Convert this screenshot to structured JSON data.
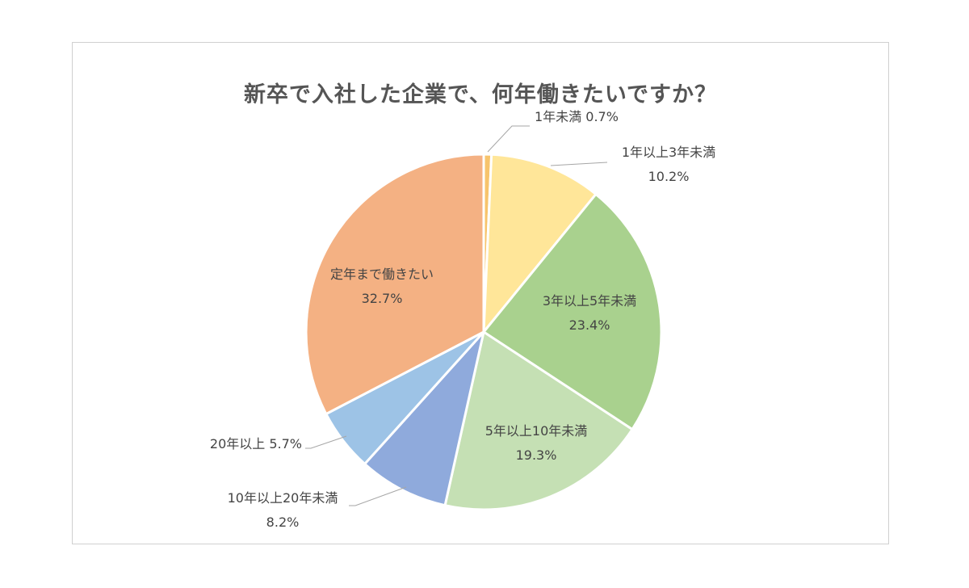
{
  "chart_data": {
    "type": "pie",
    "title": "新卒で入社した企業で、何年働きたいですか？",
    "slices": [
      {
        "label": "1年未満",
        "value": 0.7,
        "value_label": "0.7%",
        "color": "#F7C46C",
        "label_layout": "inline"
      },
      {
        "label": "1年以上3年未満",
        "value": 10.2,
        "value_label": "10.2%",
        "color": "#FFE699",
        "label_layout": "stacked"
      },
      {
        "label": "3年以上5年未満",
        "value": 23.4,
        "value_label": "23.4%",
        "color": "#A9D18E",
        "label_layout": "stacked"
      },
      {
        "label": "5年以上10年未満",
        "value": 19.3,
        "value_label": "19.3%",
        "color": "#C5E0B4",
        "label_layout": "stacked"
      },
      {
        "label": "10年以上20年未満",
        "value": 8.2,
        "value_label": "8.2%",
        "color": "#8FAADC",
        "label_layout": "stacked"
      },
      {
        "label": "20年以上",
        "value": 5.7,
        "value_label": "5.7%",
        "color": "#9DC3E6",
        "label_layout": "inline"
      },
      {
        "label": "定年まで働きたい",
        "value": 32.7,
        "value_label": "32.7%",
        "color": "#F4B183",
        "label_layout": "stacked"
      }
    ]
  }
}
